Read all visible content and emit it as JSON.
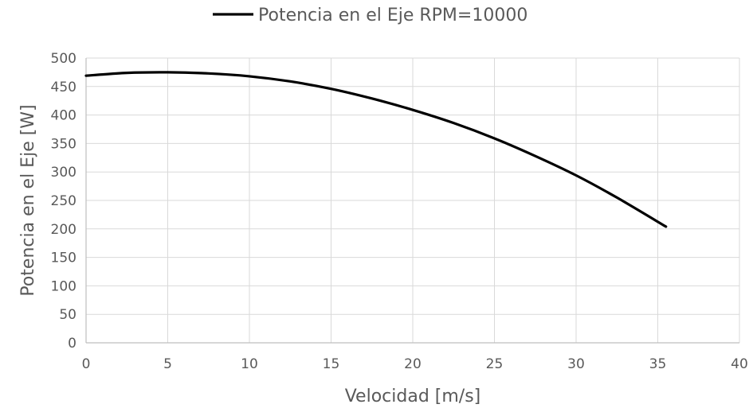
{
  "chart_data": {
    "type": "line",
    "title": "",
    "xlabel": "Velocidad [m/s]",
    "ylabel": "Potencia en el Eje [W]",
    "xlim": [
      0,
      40
    ],
    "ylim": [
      0,
      500
    ],
    "xticks": [
      0,
      5,
      10,
      15,
      20,
      25,
      30,
      35,
      40
    ],
    "yticks": [
      0,
      50,
      100,
      150,
      200,
      250,
      300,
      350,
      400,
      450,
      500
    ],
    "grid": true,
    "legend_position": "top",
    "series": [
      {
        "name": "Potencia en el Eje RPM=10000",
        "color": "#000000",
        "x": [
          0,
          2.5,
          5,
          7.5,
          10,
          12.5,
          15,
          17.5,
          20,
          22.5,
          25,
          27.5,
          30,
          32.5,
          35.5
        ],
        "y": [
          469,
          474,
          475,
          473,
          468,
          459,
          446,
          429,
          409,
          386,
          359,
          328,
          294,
          255,
          204
        ]
      }
    ]
  }
}
